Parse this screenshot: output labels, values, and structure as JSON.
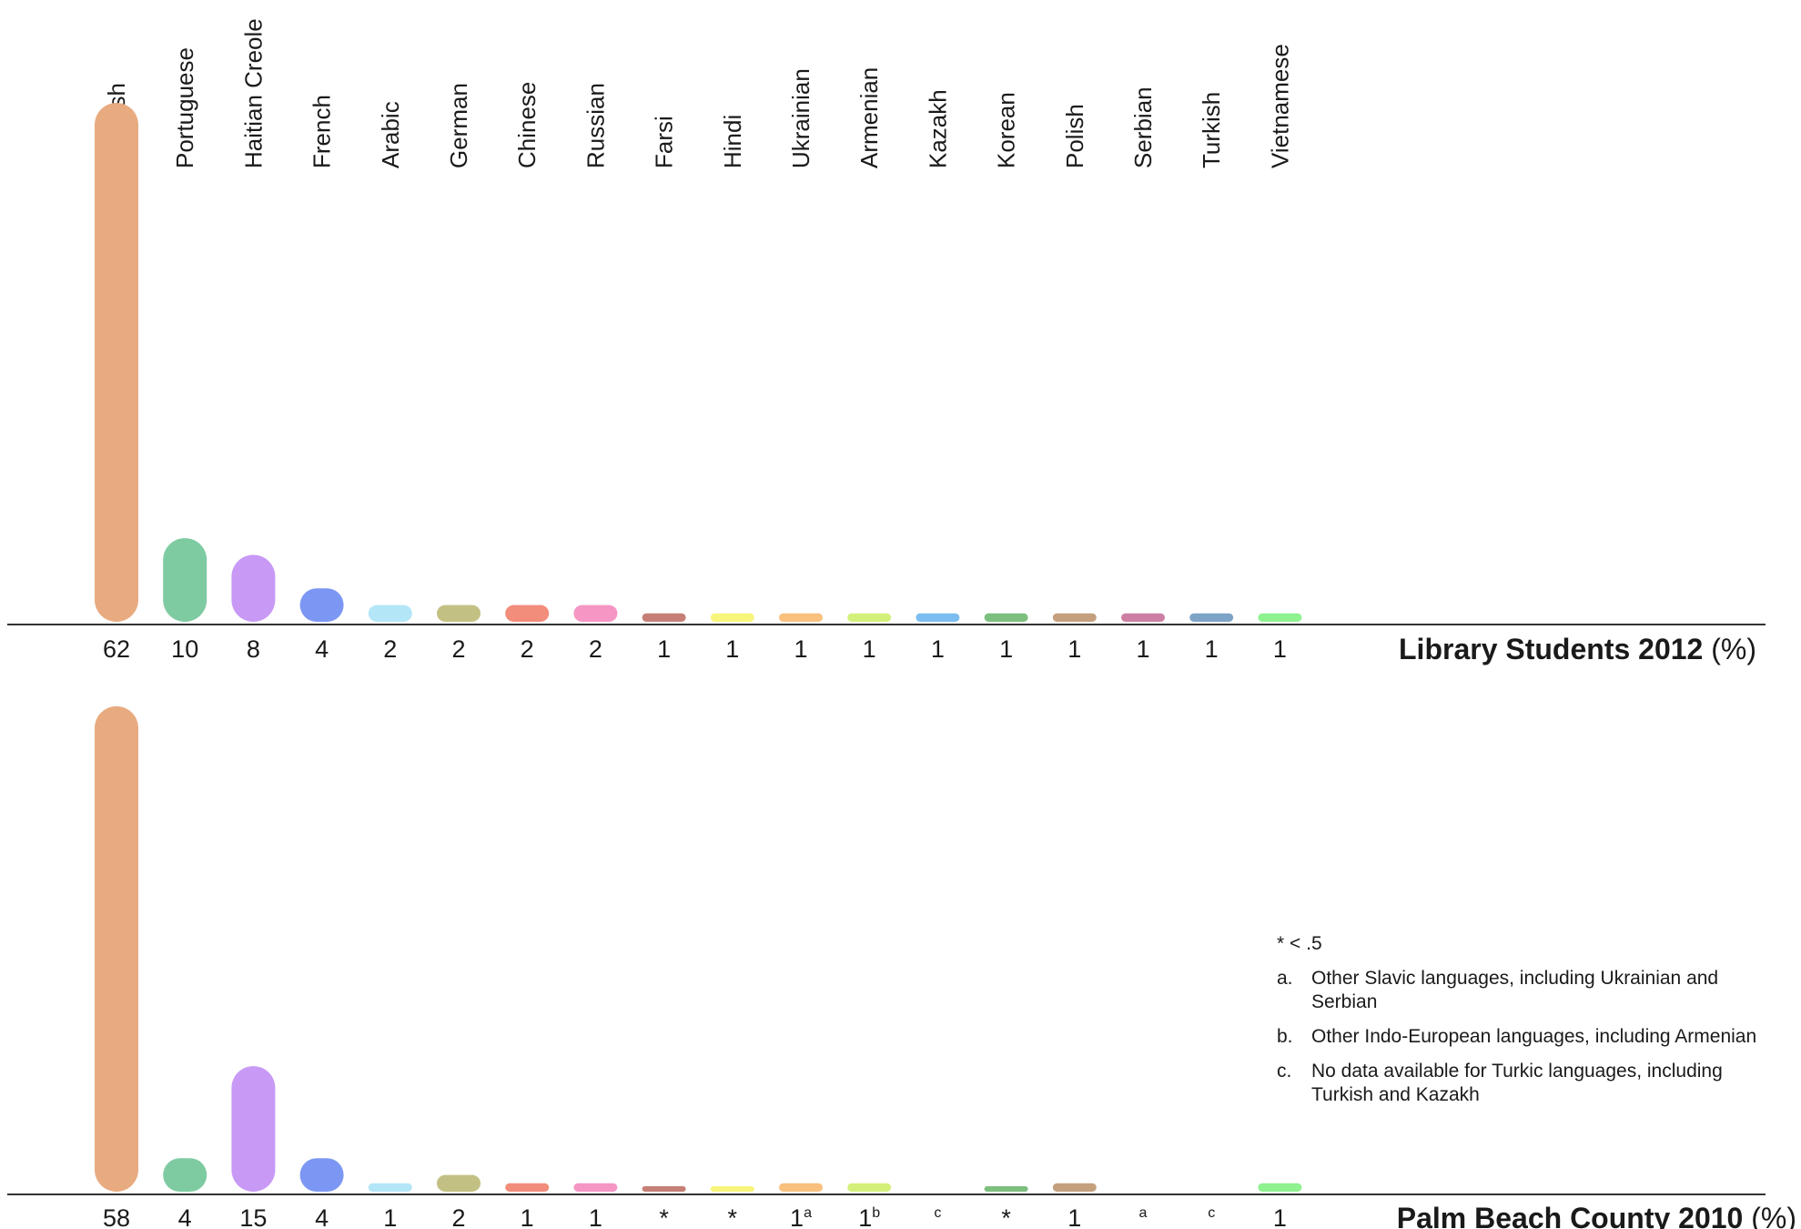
{
  "chart_data": {
    "type": "bar",
    "categories": [
      "Spanish",
      "Portuguese",
      "Haitian Creole",
      "French",
      "Arabic",
      "German",
      "Chinese",
      "Russian",
      "Farsi",
      "Hindi",
      "Ukrainian",
      "Armenian",
      "Kazakh",
      "Korean",
      "Polish",
      "Serbian",
      "Turkish",
      "Vietnamese"
    ],
    "colors": [
      "#e8ab80",
      "#7ecba2",
      "#c899f5",
      "#7c97f3",
      "#b3e6f7",
      "#c2c183",
      "#f28c7b",
      "#f596c4",
      "#c57f76",
      "#f7f57a",
      "#f9c07e",
      "#d3f07a",
      "#7bbdf0",
      "#7cbf7e",
      "#c4a07e",
      "#cc7fa3",
      "#7da4c7",
      "#8df28f"
    ],
    "panels": [
      {
        "title_bold": "Library Students 2012",
        "title_rest": " (%)",
        "values": [
          62,
          10,
          8,
          4,
          2,
          2,
          2,
          2,
          1,
          1,
          1,
          1,
          1,
          1,
          1,
          1,
          1,
          1
        ],
        "value_labels": [
          {
            "text": "62",
            "sup": ""
          },
          {
            "text": "10",
            "sup": ""
          },
          {
            "text": "8",
            "sup": ""
          },
          {
            "text": "4",
            "sup": ""
          },
          {
            "text": "2",
            "sup": ""
          },
          {
            "text": "2",
            "sup": ""
          },
          {
            "text": "2",
            "sup": ""
          },
          {
            "text": "2",
            "sup": ""
          },
          {
            "text": "1",
            "sup": ""
          },
          {
            "text": "1",
            "sup": ""
          },
          {
            "text": "1",
            "sup": ""
          },
          {
            "text": "1",
            "sup": ""
          },
          {
            "text": "1",
            "sup": ""
          },
          {
            "text": "1",
            "sup": ""
          },
          {
            "text": "1",
            "sup": ""
          },
          {
            "text": "1",
            "sup": ""
          },
          {
            "text": "1",
            "sup": ""
          },
          {
            "text": "1",
            "sup": ""
          }
        ]
      },
      {
        "title_bold": "Palm Beach County 2010",
        "title_rest": " (%)",
        "values": [
          58,
          4,
          15,
          4,
          1,
          2,
          1,
          1,
          0.3,
          0.3,
          1,
          1,
          null,
          0.3,
          1,
          null,
          null,
          1
        ],
        "value_labels": [
          {
            "text": "58",
            "sup": ""
          },
          {
            "text": "4",
            "sup": ""
          },
          {
            "text": "15",
            "sup": ""
          },
          {
            "text": "4",
            "sup": ""
          },
          {
            "text": "1",
            "sup": ""
          },
          {
            "text": "2",
            "sup": ""
          },
          {
            "text": "1",
            "sup": ""
          },
          {
            "text": "1",
            "sup": ""
          },
          {
            "text": "*",
            "sup": ""
          },
          {
            "text": "*",
            "sup": ""
          },
          {
            "text": "1",
            "sup": "a"
          },
          {
            "text": "1",
            "sup": "b"
          },
          {
            "text": "",
            "sup": "c"
          },
          {
            "text": "*",
            "sup": ""
          },
          {
            "text": "1",
            "sup": ""
          },
          {
            "text": "",
            "sup": "a"
          },
          {
            "text": "",
            "sup": "c"
          },
          {
            "text": "1",
            "sup": ""
          }
        ]
      }
    ]
  },
  "footnotes": {
    "star": "* < .5",
    "items": [
      {
        "letter": "a.",
        "text": "Other Slavic languages, including Ukrainian and Serbian"
      },
      {
        "letter": "b.",
        "text": "Other Indo-European languages, including Armenian"
      },
      {
        "letter": "c.",
        "text": "No data available for Turkic languages, including Turkish and Kazakh"
      }
    ]
  }
}
